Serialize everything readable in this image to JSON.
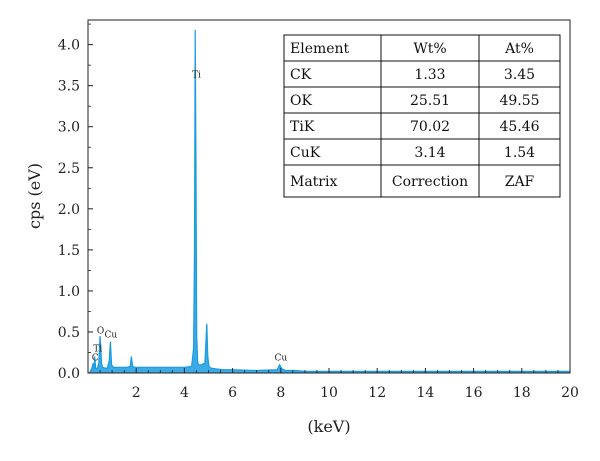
{
  "chart_data": {
    "type": "line",
    "title": "",
    "xlabel": "(keV)",
    "ylabel": "cps (eV)",
    "xlim": [
      0,
      20
    ],
    "ylim": [
      0,
      4.3
    ],
    "xticks": [
      2,
      4,
      6,
      8,
      10,
      12,
      14,
      16,
      18,
      20
    ],
    "yticks": [
      0.0,
      0.5,
      1.0,
      1.5,
      2.0,
      2.5,
      3.0,
      3.5,
      4.0
    ],
    "ytick_labels": [
      "0.0",
      "0.5",
      "1.0",
      "1.5",
      "2.0",
      "2.5",
      "3.0",
      "3.5",
      "4.0"
    ],
    "grid": false,
    "color": "#1a9be0",
    "series": [
      {
        "x": [
          0.05,
          0.15,
          0.22,
          0.26,
          0.28,
          0.32,
          0.38,
          0.45,
          0.5,
          0.53,
          0.56,
          0.6,
          0.7,
          0.8,
          0.88,
          0.93,
          0.98,
          1.05,
          1.2,
          1.4,
          1.6,
          1.75,
          1.8,
          1.85,
          1.95,
          2.1,
          2.5,
          3.0,
          3.5,
          4.0,
          4.3,
          4.38,
          4.42,
          4.45,
          4.48,
          4.51,
          4.55,
          4.6,
          4.7,
          4.85,
          4.93,
          4.97,
          5.02,
          5.1,
          5.3,
          5.6,
          6.0,
          7.0,
          7.85,
          7.95,
          8.05,
          8.2,
          8.6,
          9.0,
          10.0,
          12.0,
          14.0,
          16.0,
          18.0,
          20.0
        ],
        "y": [
          0.0,
          0.05,
          0.12,
          0.05,
          0.2,
          0.06,
          0.05,
          0.12,
          0.45,
          0.32,
          0.12,
          0.07,
          0.06,
          0.06,
          0.15,
          0.38,
          0.1,
          0.07,
          0.07,
          0.07,
          0.07,
          0.08,
          0.2,
          0.08,
          0.07,
          0.07,
          0.07,
          0.07,
          0.07,
          0.07,
          0.08,
          0.3,
          1.5,
          4.18,
          2.5,
          0.45,
          0.12,
          0.1,
          0.1,
          0.12,
          0.6,
          0.2,
          0.08,
          0.06,
          0.05,
          0.04,
          0.04,
          0.03,
          0.04,
          0.1,
          0.05,
          0.03,
          0.03,
          0.02,
          0.02,
          0.02,
          0.02,
          0.02,
          0.02,
          0.02
        ]
      }
    ],
    "annotations": [
      {
        "text": "Ti",
        "x": 4.5,
        "y": 3.6
      },
      {
        "text": "O",
        "x": 0.52,
        "y": 0.48
      },
      {
        "text": "Cu",
        "x": 0.95,
        "y": 0.43
      },
      {
        "text": "Ti",
        "x": 0.4,
        "y": 0.26
      },
      {
        "text": "C",
        "x": 0.3,
        "y": 0.15
      },
      {
        "text": "Cu",
        "x": 8.0,
        "y": 0.15
      }
    ]
  },
  "table": {
    "headers": [
      "Element",
      "Wt%",
      "At%"
    ],
    "rows": [
      [
        "CK",
        "1.33",
        "3.45"
      ],
      [
        "OK",
        "25.51",
        "49.55"
      ],
      [
        "TiK",
        "70.02",
        "45.46"
      ],
      [
        "CuK",
        "3.14",
        "1.54"
      ],
      [
        "Matrix",
        "Correction",
        "ZAF"
      ]
    ]
  }
}
